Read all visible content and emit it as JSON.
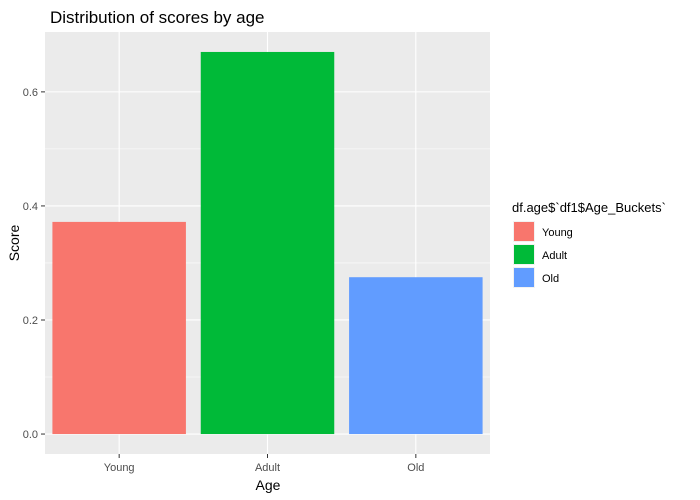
{
  "chart_data": {
    "type": "bar",
    "title": "Distribution of scores by age",
    "xlabel": "Age",
    "ylabel": "Score",
    "categories": [
      "Young",
      "Adult",
      "Old"
    ],
    "values": [
      0.372,
      0.67,
      0.275
    ],
    "colors": [
      "#F8766D",
      "#00BA38",
      "#619CFF"
    ],
    "ylim": [
      -0.035,
      0.705
    ],
    "yticks": [
      0.0,
      0.2,
      0.4,
      0.6
    ],
    "ytick_labels": [
      "0.0",
      "0.2",
      "0.4",
      "0.6"
    ],
    "grid": true,
    "panel_background": "#EBEBEB",
    "legend": {
      "title": "df.age$`df1$Age_Buckets`",
      "position": "right",
      "entries": [
        "Young",
        "Adult",
        "Old"
      ]
    }
  }
}
